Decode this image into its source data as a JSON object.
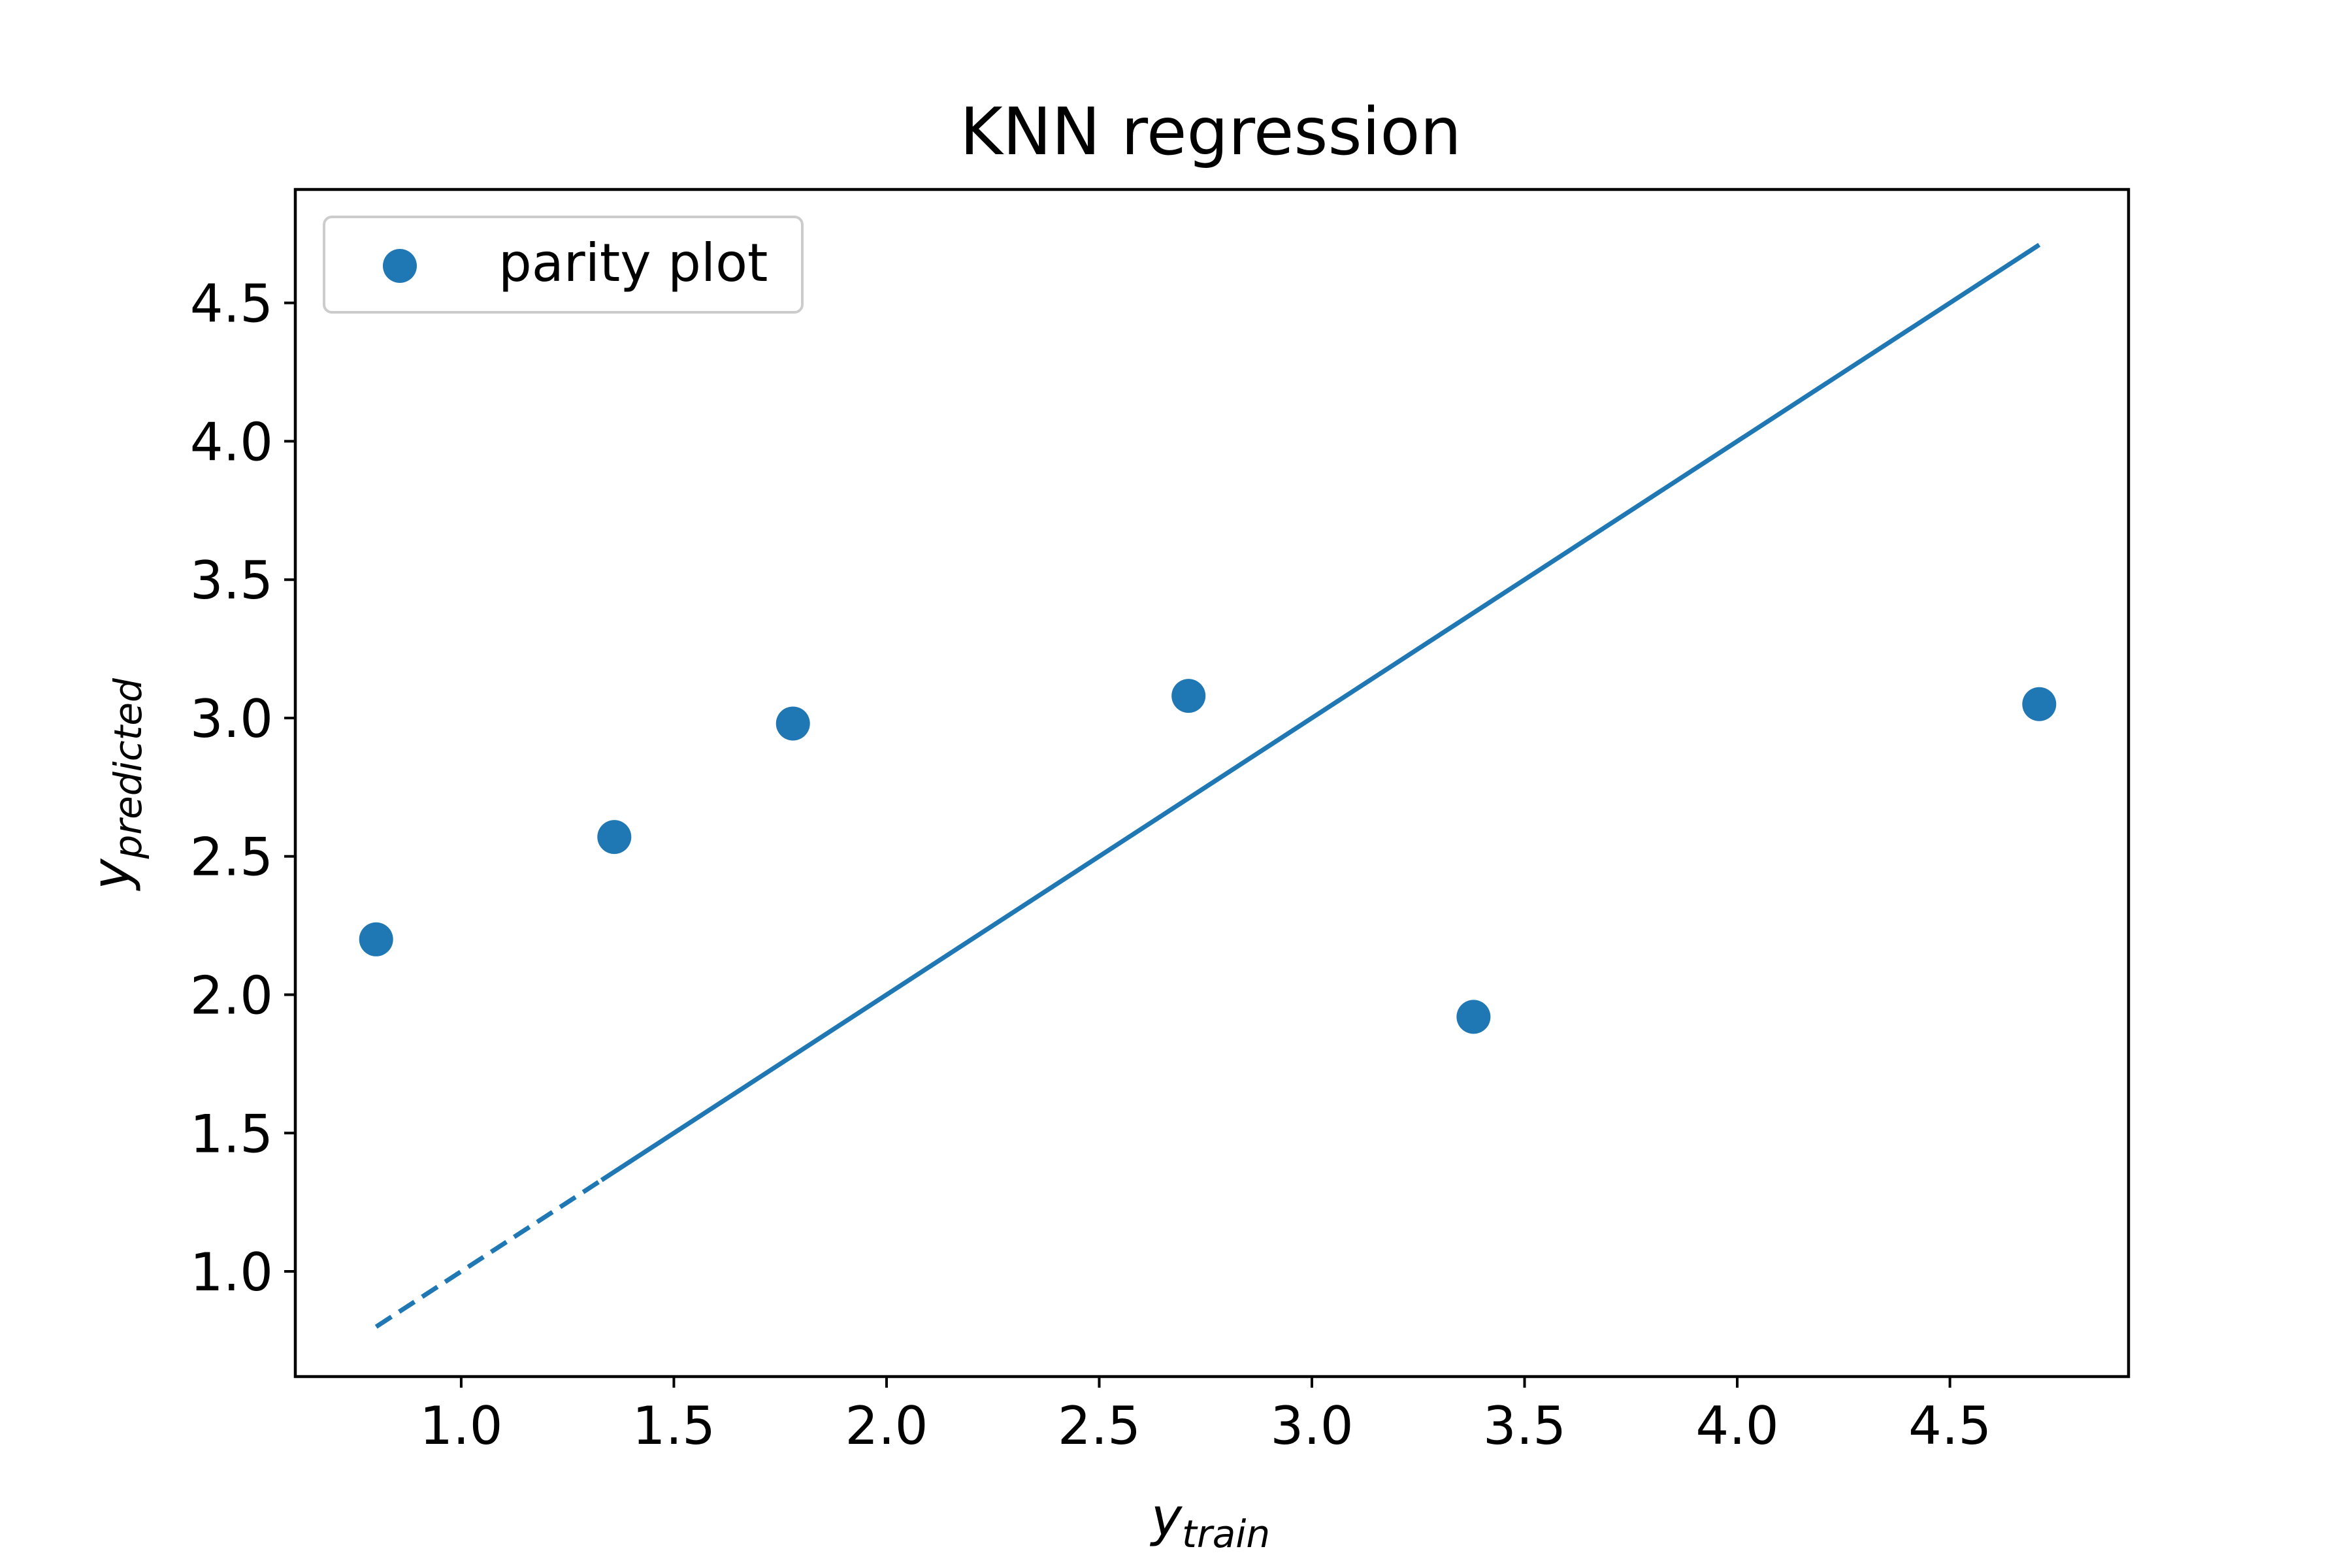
{
  "chart_data": {
    "type": "scatter",
    "title": "KNN regression",
    "xlabel": {
      "base": "y",
      "subscript": "train"
    },
    "ylabel": {
      "base": "y",
      "subscript": "predicted"
    },
    "xlim": [
      0.61,
      4.92
    ],
    "ylim": [
      0.62,
      4.91
    ],
    "xticks": [
      1.0,
      1.5,
      2.0,
      2.5,
      3.0,
      3.5,
      4.0,
      4.5
    ],
    "xtick_labels": [
      "1.0",
      "1.5",
      "2.0",
      "2.5",
      "3.0",
      "3.5",
      "4.0",
      "4.5"
    ],
    "yticks": [
      1.0,
      1.5,
      2.0,
      2.5,
      3.0,
      3.5,
      4.0,
      4.5
    ],
    "ytick_labels": [
      "1.0",
      "1.5",
      "2.0",
      "2.5",
      "3.0",
      "3.5",
      "4.0",
      "4.5"
    ],
    "grid": false,
    "legend": {
      "placement": "upper-left",
      "entries": [
        "parity plot"
      ]
    },
    "series": [
      {
        "name": "parity plot",
        "kind": "scatter",
        "color": "#1f77b4",
        "x": [
          0.8,
          1.36,
          1.78,
          2.71,
          3.38,
          4.71
        ],
        "y": [
          2.2,
          2.57,
          2.98,
          3.08,
          1.92,
          3.05
        ]
      }
    ],
    "reference_line": {
      "kind": "line",
      "color": "#1f77b4",
      "dashed_segment": {
        "x": [
          0.8,
          1.33
        ],
        "y": [
          0.8,
          1.33
        ]
      },
      "solid_segment": {
        "x": [
          1.33,
          4.71
        ],
        "y": [
          1.33,
          4.71
        ]
      }
    }
  }
}
